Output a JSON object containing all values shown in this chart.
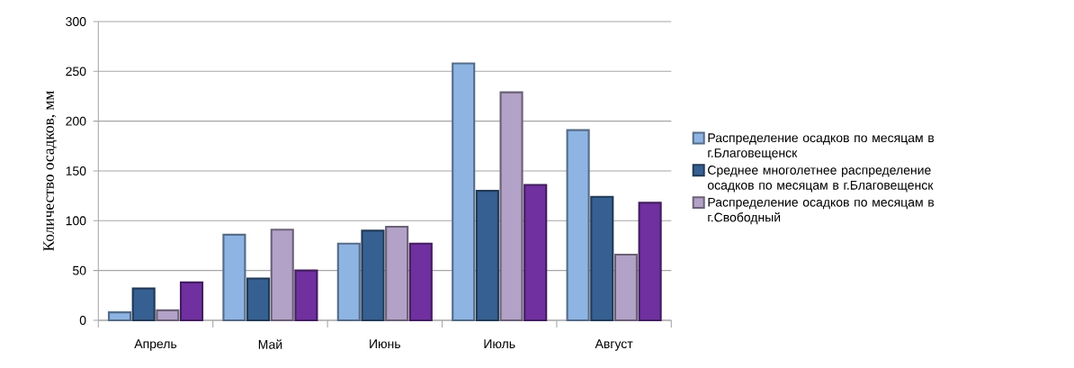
{
  "chart_data": {
    "type": "bar",
    "ylabel": "Количество осадков, мм",
    "categories": [
      "Апрель",
      "Май",
      "Июнь",
      "Июль",
      "Август"
    ],
    "series": [
      {
        "name": "Распределение осадков по месяцам в г.Благовещенск",
        "color": "#8eb4e3",
        "values": [
          8,
          86,
          77,
          258,
          191
        ]
      },
      {
        "name": "Среднее многолетнее распределение осадков по месяцам в г.Благовещенск",
        "color": "#376092",
        "values": [
          32,
          42,
          90,
          130,
          124
        ]
      },
      {
        "name": "Распределение осадков по месяцам в г.Свободный",
        "color": "#b3a2c7",
        "values": [
          10,
          91,
          94,
          229,
          66
        ]
      },
      {
        "color": "#7030a0",
        "values": [
          38,
          50,
          77,
          136,
          118
        ]
      }
    ],
    "ylim": [
      0,
      300
    ],
    "yticks": [
      0,
      50,
      100,
      150,
      200,
      250,
      300
    ],
    "grid": "y",
    "legend": "right"
  }
}
